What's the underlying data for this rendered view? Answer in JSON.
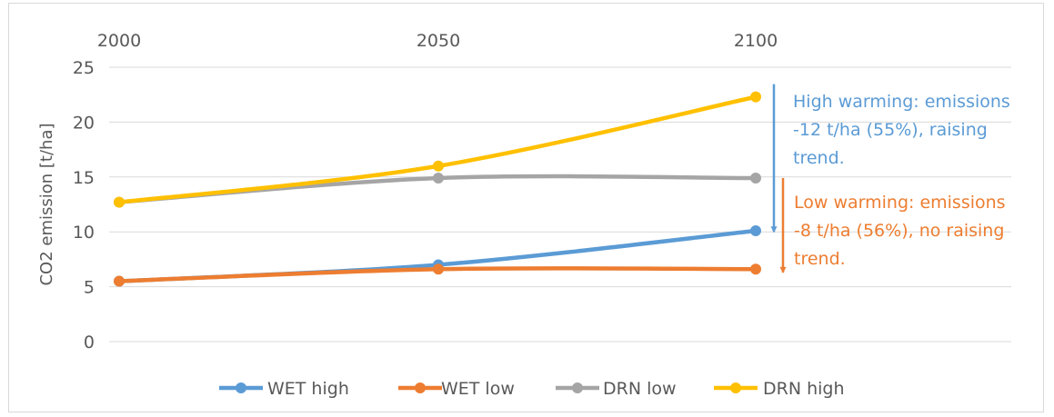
{
  "chart_data": {
    "type": "line",
    "title": "",
    "xlabel": "",
    "ylabel": "CO2 emission [t/ha]",
    "x": [
      2000,
      2050,
      2100
    ],
    "x_tick_labels": [
      "2000",
      "2050",
      "2100"
    ],
    "x_axis_position": "top",
    "ylim": [
      0,
      25
    ],
    "y_ticks": [
      0,
      5,
      10,
      15,
      20,
      25
    ],
    "y_tick_labels": [
      "0",
      "5",
      "10",
      "15",
      "20",
      "25"
    ],
    "grid": true,
    "legend_position": "bottom",
    "series": [
      {
        "name": "WET high",
        "values": [
          5.5,
          7.0,
          10.1
        ],
        "color": "#5b9bd5"
      },
      {
        "name": "WET low",
        "values": [
          5.5,
          6.6,
          6.6
        ],
        "color": "#ed7d31"
      },
      {
        "name": "DRN low",
        "values": [
          12.7,
          14.9,
          14.9
        ],
        "color": "#a5a5a5"
      },
      {
        "name": "DRN high",
        "values": [
          12.7,
          16.0,
          22.3
        ],
        "color": "#ffc000"
      }
    ],
    "annotations": [
      {
        "color": "#5b9bd5",
        "lines": [
          "High warming: emissions",
          "-12  t/ha  (55%),  raising",
          "trend."
        ],
        "arrow_from": 22.3,
        "arrow_to": 10.0
      },
      {
        "color": "#ed7d31",
        "lines": [
          "Low warming: emissions",
          "-8 t/ha (56%), no raising",
          "trend."
        ],
        "arrow_from": 14.9,
        "arrow_to": 6.3
      }
    ]
  }
}
